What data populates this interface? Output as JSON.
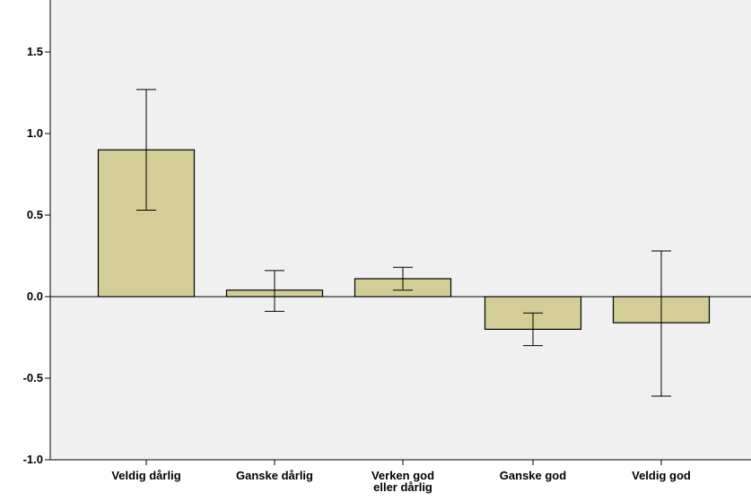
{
  "chart_data": {
    "type": "bar",
    "title": "",
    "xlabel": "",
    "ylabel": "",
    "categories": [
      [
        "Veldig dårlig"
      ],
      [
        "Ganske dårlig"
      ],
      [
        "Verken god",
        "eller dårlig"
      ],
      [
        "Ganske god"
      ],
      [
        "Veldig god"
      ]
    ],
    "values": [
      0.9,
      0.04,
      0.11,
      -0.2,
      -0.16
    ],
    "error_low": [
      0.53,
      -0.09,
      0.04,
      -0.3,
      -0.61
    ],
    "error_high": [
      1.27,
      0.16,
      0.18,
      -0.1,
      0.28
    ],
    "ylim": [
      -1.0,
      1.5
    ],
    "yticks": [
      -1.0,
      -0.5,
      0.0,
      0.5,
      1.0,
      1.5
    ],
    "ytick_labels": [
      "-1.0",
      "-0.5",
      "0.0",
      "0.5",
      "1.0",
      "1.5"
    ],
    "grid": false,
    "colors": {
      "plot_background": "#f0f0f0",
      "bar_fill": "#d3ce97",
      "bar_stroke": "#000000",
      "axis": "#000000"
    }
  }
}
